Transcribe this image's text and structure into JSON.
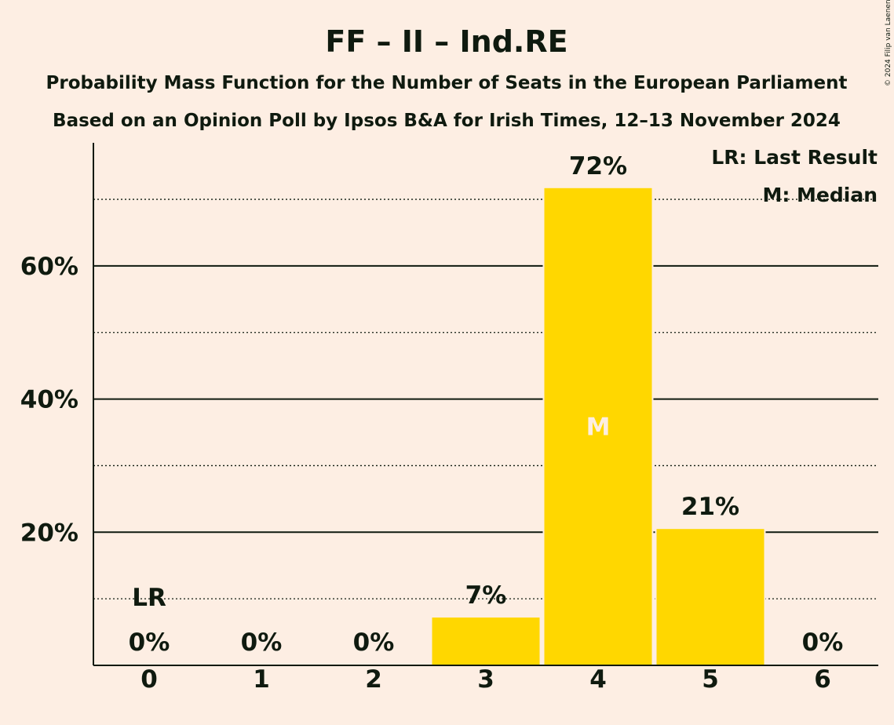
{
  "chart_data": {
    "type": "bar",
    "title": "FF – II – Ind.RE",
    "subtitle_lines": [
      "Probability Mass Function for the Number of Seats in the European Parliament",
      "Based on an Opinion Poll by Ipsos B&A for Irish Times, 12–13 November 2024"
    ],
    "categories": [
      "0",
      "1",
      "2",
      "3",
      "4",
      "5",
      "6"
    ],
    "values": [
      0,
      0,
      0,
      7.3,
      71.8,
      20.6,
      0
    ],
    "value_labels": [
      "0%",
      "0%",
      "0%",
      "7%",
      "72%",
      "21%",
      "0%"
    ],
    "ylim": [
      0,
      78
    ],
    "y_ticks_major": [
      20,
      40,
      60
    ],
    "y_tick_labels": [
      "20%",
      "40%",
      "60%"
    ],
    "y_ticks_minor": [
      10,
      30,
      50,
      70
    ],
    "bar_color": "#ffd700",
    "last_result": {
      "index": 0,
      "label": "LR"
    },
    "median": {
      "index": 4,
      "label": "M"
    },
    "legend": [
      "LR: Last Result",
      "M: Median"
    ],
    "copyright": "© 2024 Filip van Laenen"
  }
}
